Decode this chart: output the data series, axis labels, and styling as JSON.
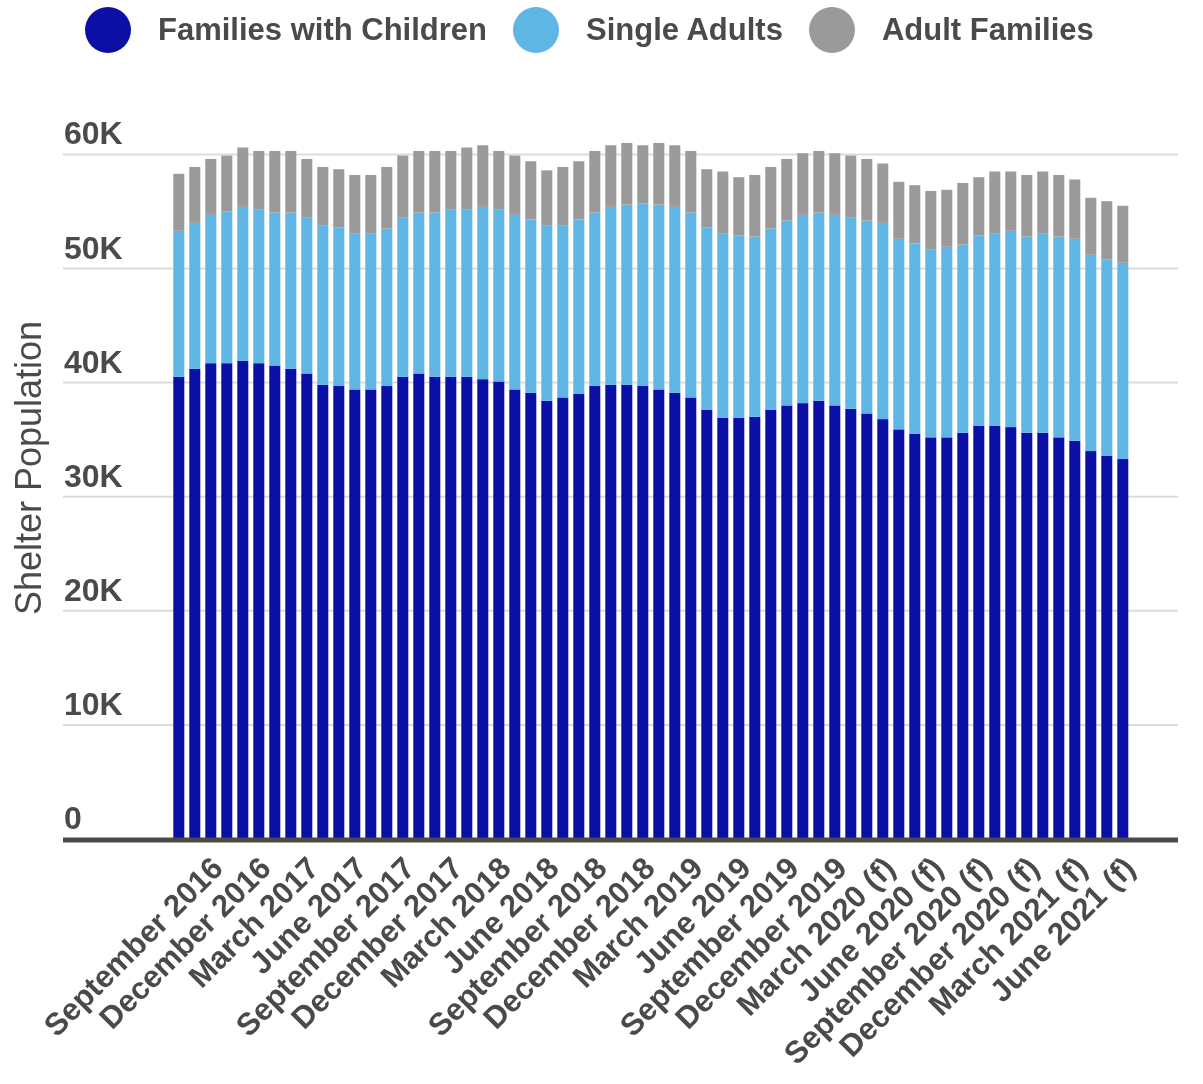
{
  "chart_data": {
    "type": "bar",
    "stacked": true,
    "ylabel": "Shelter Population",
    "categories": [
      null,
      null,
      "September 2016",
      null,
      null,
      "December 2016",
      null,
      null,
      "March 2017",
      null,
      null,
      "June 2017",
      null,
      null,
      "September 2017",
      null,
      null,
      "December 2017",
      null,
      null,
      "March 2018",
      null,
      null,
      "June 2018",
      null,
      null,
      "September 2018",
      null,
      null,
      "December 2018",
      null,
      null,
      "March 2019",
      null,
      null,
      "June 2019",
      null,
      null,
      "September 2019",
      null,
      null,
      "December 2019",
      null,
      null,
      "March 2020 (f)",
      null,
      null,
      "June 2020 (f)",
      null,
      null,
      "September 2020 (f)",
      null,
      null,
      "December 2020 (f)",
      null,
      null,
      "March 2021 (f)",
      null,
      null,
      "June 2021 (f)"
    ],
    "series": [
      {
        "name": "Families with Children",
        "color": "#0b0fa5",
        "values": [
          40500,
          41200,
          41700,
          41700,
          41900,
          41700,
          41500,
          41200,
          40800,
          39800,
          39700,
          39400,
          39400,
          39700,
          40500,
          40800,
          40500,
          40500,
          40500,
          40300,
          40100,
          39400,
          39100,
          38400,
          38700,
          39000,
          39700,
          39800,
          39800,
          39700,
          39400,
          39100,
          38700,
          37600,
          36900,
          36900,
          37000,
          37600,
          38000,
          38200,
          38400,
          38000,
          37700,
          37300,
          36800,
          35900,
          35500,
          35200,
          35200,
          35600,
          36200,
          36200,
          36100,
          35600,
          35600,
          35200,
          34900,
          34000,
          33600,
          33300
        ]
      },
      {
        "name": "Single Adults",
        "color": "#5fb6e5",
        "values": [
          12800,
          12800,
          13000,
          13300,
          13500,
          13500,
          13400,
          13700,
          13700,
          14000,
          13900,
          13700,
          13700,
          13800,
          14000,
          14100,
          14400,
          14700,
          14700,
          15100,
          15100,
          15300,
          15200,
          15400,
          15100,
          15300,
          15200,
          15600,
          15800,
          16000,
          16200,
          16300,
          16200,
          16000,
          16200,
          16000,
          15800,
          15900,
          16200,
          16500,
          16500,
          16700,
          16800,
          16900,
          17200,
          16700,
          16700,
          16500,
          16700,
          16500,
          16700,
          16900,
          17200,
          17200,
          17500,
          17600,
          17700,
          17200,
          17200,
          17200
        ]
      },
      {
        "name": "Adult Families",
        "color": "#9a9a9a",
        "values": [
          5000,
          4900,
          4900,
          4900,
          5200,
          5100,
          5400,
          5400,
          5100,
          5100,
          5100,
          5100,
          5100,
          5400,
          5400,
          5400,
          5400,
          5100,
          5400,
          5400,
          5100,
          5200,
          5100,
          4800,
          5100,
          5100,
          5400,
          5400,
          5400,
          5100,
          5400,
          5400,
          5400,
          5100,
          5400,
          5100,
          5400,
          5400,
          5400,
          5400,
          5400,
          5400,
          5400,
          5400,
          5200,
          5000,
          5100,
          5100,
          5000,
          5400,
          5100,
          5400,
          5200,
          5400,
          5400,
          5400,
          5200,
          5000,
          5100,
          5000
        ]
      }
    ],
    "ylim": [
      0,
      61000
    ],
    "yticks": [
      0,
      {
        "value": 10000,
        "label": "10K"
      },
      {
        "value": 20000,
        "label": "20K"
      },
      {
        "value": 30000,
        "label": "30K"
      },
      {
        "value": 40000,
        "label": "40K"
      },
      {
        "value": 50000,
        "label": "50K"
      },
      {
        "value": 60000,
        "label": "60K"
      }
    ],
    "grid": "y",
    "legend": "top"
  }
}
